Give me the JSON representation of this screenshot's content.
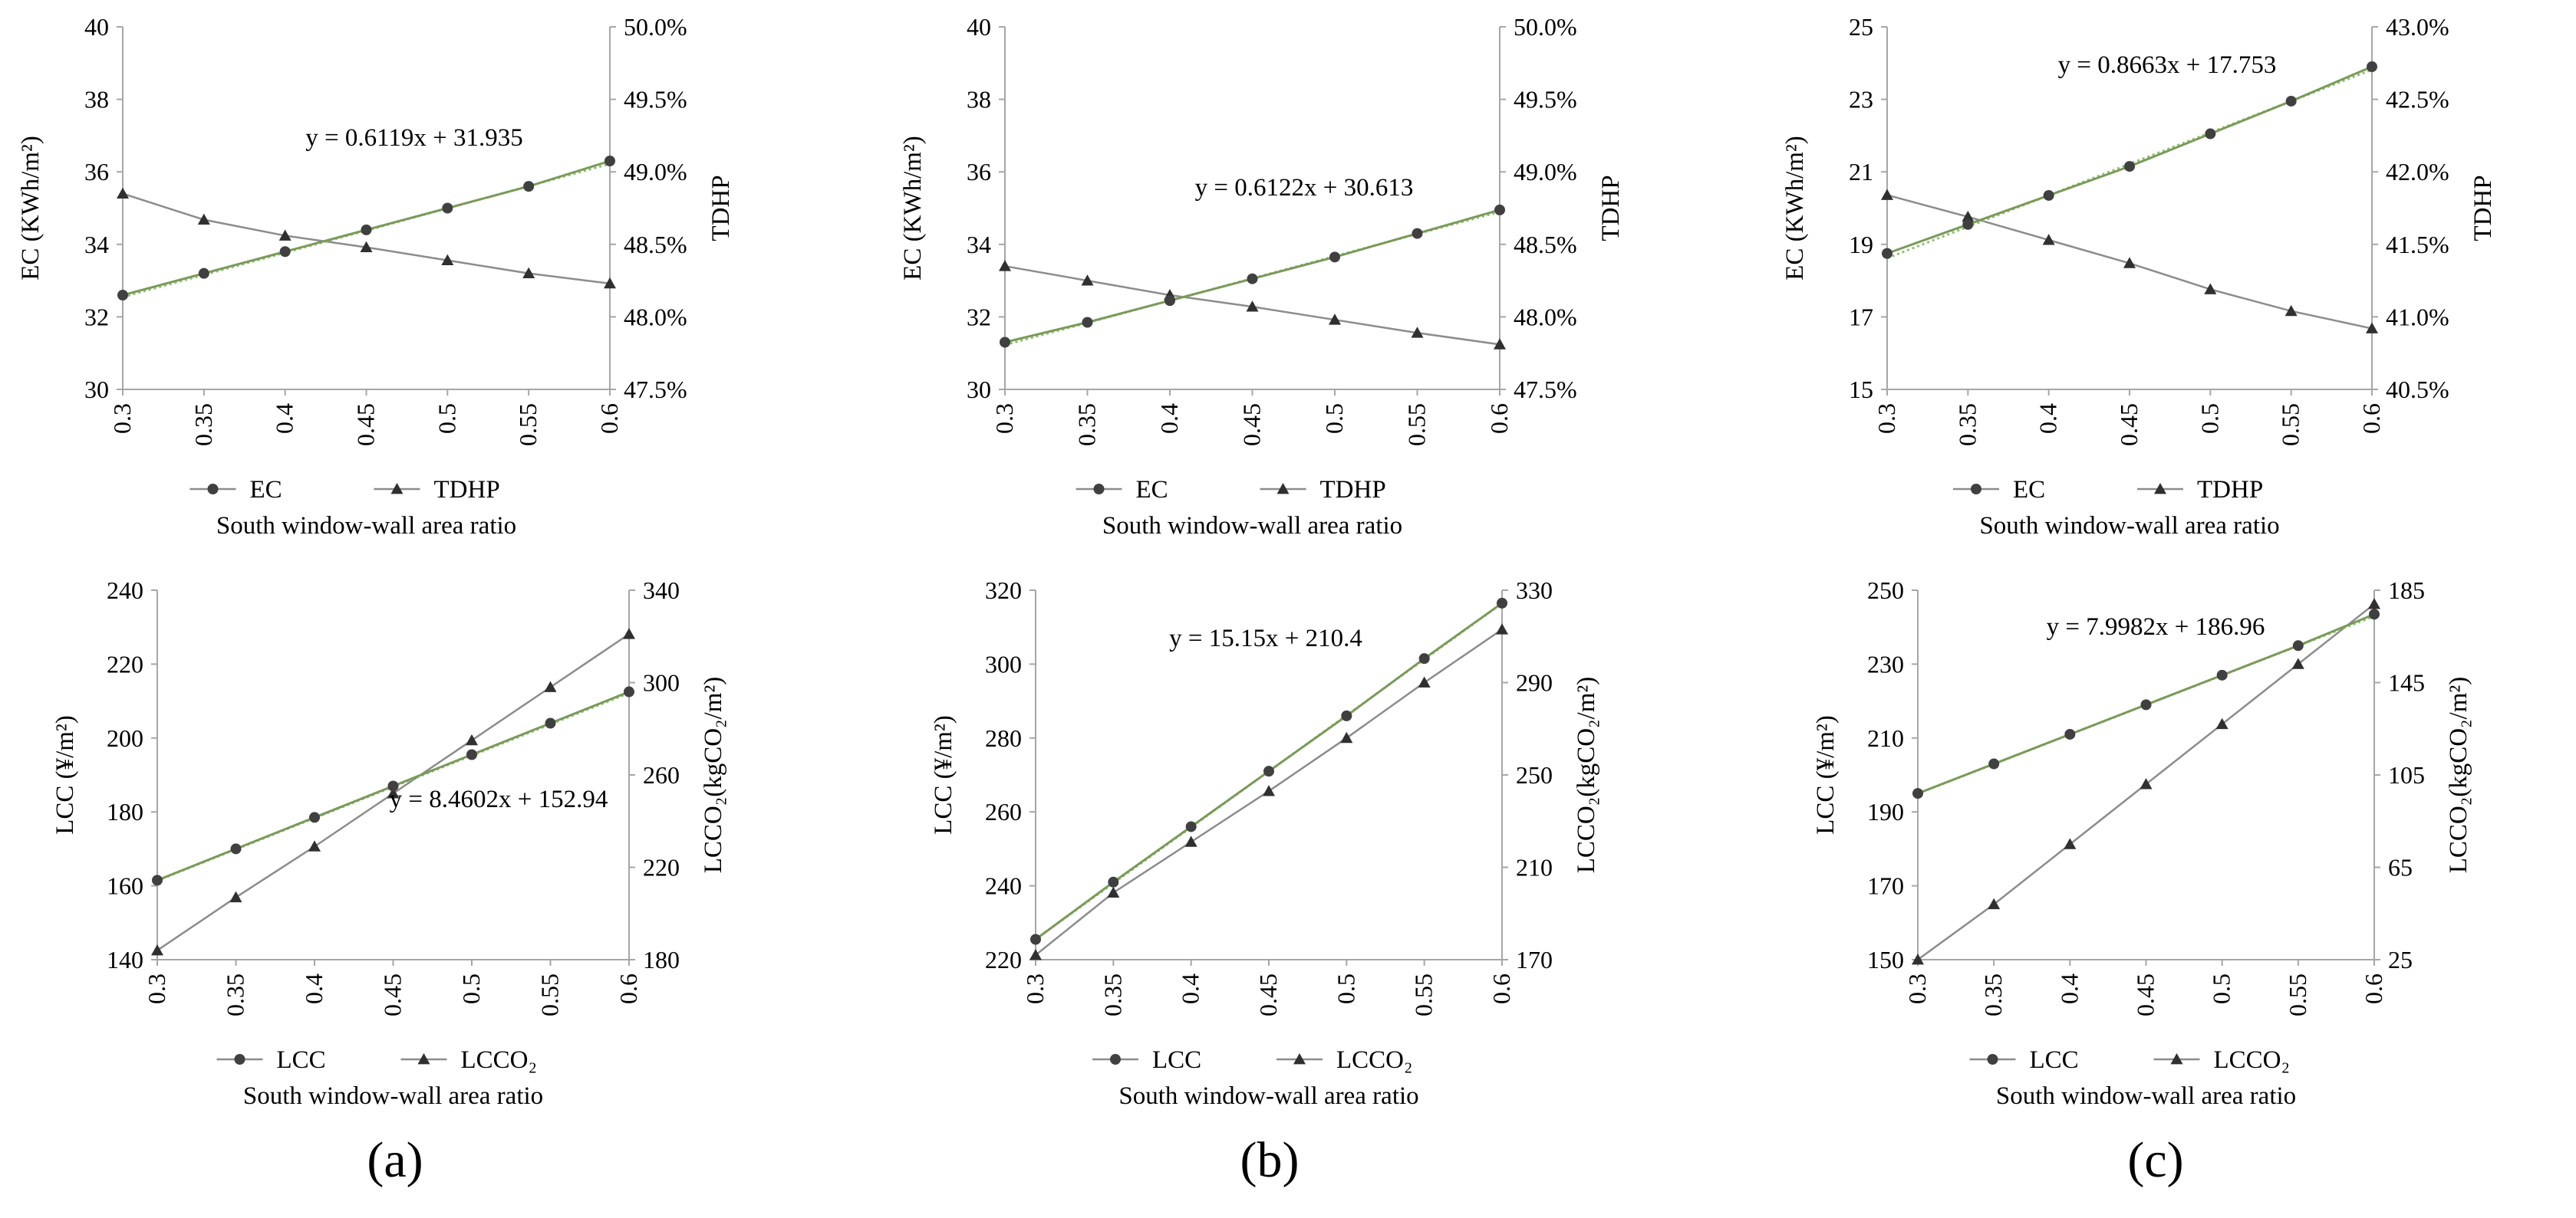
{
  "figure": {
    "panel_labels": [
      "(a)",
      "(b)",
      "(c)"
    ]
  },
  "colors": {
    "primary_series_line": "#7a9a5a",
    "primary_marker": "#404040",
    "secondary_series_line": "#8c8c8c",
    "secondary_marker": "#303030",
    "trendline": "#8fbf6f",
    "axis": "#a6a6a6",
    "text": "#000000"
  },
  "chart_data": [
    {
      "id": "a-top",
      "type": "line",
      "panel": "(a)",
      "xlabel": "South window-wall area ratio",
      "ylabel_left": "EC (KWh/m²)",
      "ylabel_right": "TDHP",
      "categories": [
        "0.3",
        "0.35",
        "0.4",
        "0.45",
        "0.5",
        "0.55",
        "0.6"
      ],
      "x": [
        0.3,
        0.35,
        0.4,
        0.45,
        0.5,
        0.55,
        0.6
      ],
      "ylim_left": [
        30,
        40
      ],
      "yticks_left": [
        "30",
        "32",
        "34",
        "36",
        "38",
        "40"
      ],
      "ylim_right": [
        0.475,
        0.5
      ],
      "yticks_right": [
        "47.5%",
        "48.0%",
        "48.5%",
        "49.0%",
        "49.5%",
        "50.0%"
      ],
      "series": [
        {
          "name": "EC",
          "axis": "left",
          "marker": "circle",
          "values": [
            32.6,
            33.2,
            33.8,
            34.4,
            35.0,
            35.6,
            36.3
          ]
        },
        {
          "name": "TDHP",
          "axis": "right",
          "marker": "triangle",
          "values": [
            0.4885,
            0.4867,
            0.4856,
            0.4848,
            0.4839,
            0.483,
            0.4823
          ]
        }
      ],
      "trendline": {
        "slope": 0.6119,
        "intercept": 31.935,
        "label": "y = 0.6119x + 31.935"
      },
      "legend": [
        "EC",
        "TDHP"
      ],
      "legend_position": "bottom"
    },
    {
      "id": "b-top",
      "type": "line",
      "panel": "(b)",
      "xlabel": "South window-wall area ratio",
      "ylabel_left": "EC (KWh/m²)",
      "ylabel_right": "TDHP",
      "categories": [
        "0.3",
        "0.35",
        "0.4",
        "0.45",
        "0.5",
        "0.55",
        "0.6"
      ],
      "x": [
        0.3,
        0.35,
        0.4,
        0.45,
        0.5,
        0.55,
        0.6
      ],
      "ylim_left": [
        30,
        40
      ],
      "yticks_left": [
        "30",
        "32",
        "34",
        "36",
        "38",
        "40"
      ],
      "ylim_right": [
        0.475,
        0.5
      ],
      "yticks_right": [
        "47.5%",
        "48.0%",
        "48.5%",
        "49.0%",
        "49.5%",
        "50.0%"
      ],
      "series": [
        {
          "name": "EC",
          "axis": "left",
          "marker": "circle",
          "values": [
            31.3,
            31.85,
            32.45,
            33.05,
            33.65,
            34.3,
            34.95
          ]
        },
        {
          "name": "TDHP",
          "axis": "right",
          "marker": "triangle",
          "values": [
            0.4835,
            0.4825,
            0.4815,
            0.4807,
            0.4798,
            0.4789,
            0.4781
          ]
        }
      ],
      "trendline": {
        "slope": 0.6122,
        "intercept": 30.613,
        "label": "y = 0.6122x + 30.613"
      },
      "legend": [
        "EC",
        "TDHP"
      ],
      "legend_position": "bottom"
    },
    {
      "id": "c-top",
      "type": "line",
      "panel": "(c)",
      "xlabel": "South window-wall area ratio",
      "ylabel_left": "EC (KWh/m²)",
      "ylabel_right": "TDHP",
      "categories": [
        "0.3",
        "0.35",
        "0.4",
        "0.45",
        "0.5",
        "0.55",
        "0.6"
      ],
      "x": [
        0.3,
        0.35,
        0.4,
        0.45,
        0.5,
        0.55,
        0.6
      ],
      "ylim_left": [
        15,
        25
      ],
      "yticks_left": [
        "15",
        "17",
        "19",
        "21",
        "23",
        "25"
      ],
      "ylim_right": [
        0.405,
        0.43
      ],
      "yticks_right": [
        "40.5%",
        "41.0%",
        "41.5%",
        "42.0%",
        "42.5%",
        "43.0%"
      ],
      "series": [
        {
          "name": "EC",
          "axis": "left",
          "marker": "circle",
          "values": [
            18.75,
            19.55,
            20.35,
            21.15,
            22.05,
            22.95,
            23.9
          ]
        },
        {
          "name": "TDHP",
          "axis": "right",
          "marker": "triangle",
          "values": [
            0.4184,
            0.4169,
            0.4153,
            0.4137,
            0.4119,
            0.4104,
            0.4092
          ]
        }
      ],
      "trendline": {
        "slope": 0.8663,
        "intercept": 17.753,
        "label": "y = 0.8663x + 17.753"
      },
      "legend": [
        "EC",
        "TDHP"
      ],
      "legend_position": "bottom"
    },
    {
      "id": "a-bottom",
      "type": "line",
      "panel": "(a)",
      "xlabel": "South window-wall area ratio",
      "ylabel_left": "LCC (¥/m²)",
      "ylabel_right": "LCCO₂(kgCO₂/m²)",
      "categories": [
        "0.3",
        "0.35",
        "0.4",
        "0.45",
        "0.5",
        "0.55",
        "0.6"
      ],
      "x": [
        0.3,
        0.35,
        0.4,
        0.45,
        0.5,
        0.55,
        0.6
      ],
      "ylim_left": [
        140,
        240
      ],
      "yticks_left": [
        "140",
        "160",
        "180",
        "200",
        "220",
        "240"
      ],
      "ylim_right": [
        180,
        340
      ],
      "yticks_right": [
        "180",
        "220",
        "260",
        "300",
        "340"
      ],
      "series": [
        {
          "name": "LCC",
          "axis": "left",
          "marker": "circle",
          "values": [
            161.5,
            170.0,
            178.5,
            187.0,
            195.5,
            204.0,
            212.5
          ]
        },
        {
          "name": "LCCO₂",
          "axis": "right",
          "marker": "triangle",
          "values": [
            184,
            207,
            229,
            252,
            275,
            298,
            321
          ]
        }
      ],
      "trendline": {
        "slope": 8.4602,
        "intercept": 152.94,
        "label": "y = 8.4602x + 152.94"
      },
      "legend": [
        "LCC",
        "LCCO₂"
      ],
      "legend_position": "bottom"
    },
    {
      "id": "b-bottom",
      "type": "line",
      "panel": "(b)",
      "xlabel": "South window-wall area ratio",
      "ylabel_left": "LCC (¥/m²)",
      "ylabel_right": "LCCO₂(kgCO₂/m²)",
      "categories": [
        "0.3",
        "0.35",
        "0.4",
        "0.45",
        "0.5",
        "0.55",
        "0.6"
      ],
      "x": [
        0.3,
        0.35,
        0.4,
        0.45,
        0.5,
        0.55,
        0.6
      ],
      "ylim_left": [
        220,
        320
      ],
      "yticks_left": [
        "220",
        "240",
        "260",
        "280",
        "300",
        "320"
      ],
      "ylim_right": [
        170,
        330
      ],
      "yticks_right": [
        "170",
        "210",
        "250",
        "290",
        "330"
      ],
      "series": [
        {
          "name": "LCC",
          "axis": "left",
          "marker": "circle",
          "values": [
            225.5,
            241.0,
            256.0,
            271.0,
            286.0,
            301.5,
            316.5
          ]
        },
        {
          "name": "LCCO₂",
          "axis": "right",
          "marker": "triangle",
          "values": [
            172,
            199,
            221,
            243,
            266,
            290,
            313
          ]
        }
      ],
      "trendline": {
        "slope": 15.15,
        "intercept": 210.4,
        "label": "y = 15.15x + 210.4"
      },
      "legend": [
        "LCC",
        "LCCO₂"
      ],
      "legend_position": "bottom"
    },
    {
      "id": "c-bottom",
      "type": "line",
      "panel": "(c)",
      "xlabel": "South window-wall area ratio",
      "ylabel_left": "LCC (¥/m²)",
      "ylabel_right": "LCCO₂(kgCO₂/m²)",
      "categories": [
        "0.3",
        "0.35",
        "0.4",
        "0.45",
        "0.5",
        "0.55",
        "0.6"
      ],
      "x": [
        0.3,
        0.35,
        0.4,
        0.45,
        0.5,
        0.55,
        0.6
      ],
      "ylim_left": [
        150,
        250
      ],
      "yticks_left": [
        "150",
        "170",
        "190",
        "210",
        "230",
        "250"
      ],
      "ylim_right": [
        25,
        185
      ],
      "yticks_right": [
        "25",
        "65",
        "105",
        "145",
        "185"
      ],
      "series": [
        {
          "name": "LCC",
          "axis": "left",
          "marker": "circle",
          "values": [
            195.0,
            203.0,
            211.0,
            219.0,
            227.0,
            235.0,
            243.5
          ]
        },
        {
          "name": "LCCO₂",
          "axis": "right",
          "marker": "triangle",
          "values": [
            25,
            49,
            75,
            101,
            127,
            153,
            179
          ]
        }
      ],
      "trendline": {
        "slope": 7.9982,
        "intercept": 186.96,
        "label": "y = 7.9982x + 186.96"
      },
      "legend": [
        "LCC",
        "LCCO₂"
      ],
      "legend_position": "bottom"
    }
  ]
}
